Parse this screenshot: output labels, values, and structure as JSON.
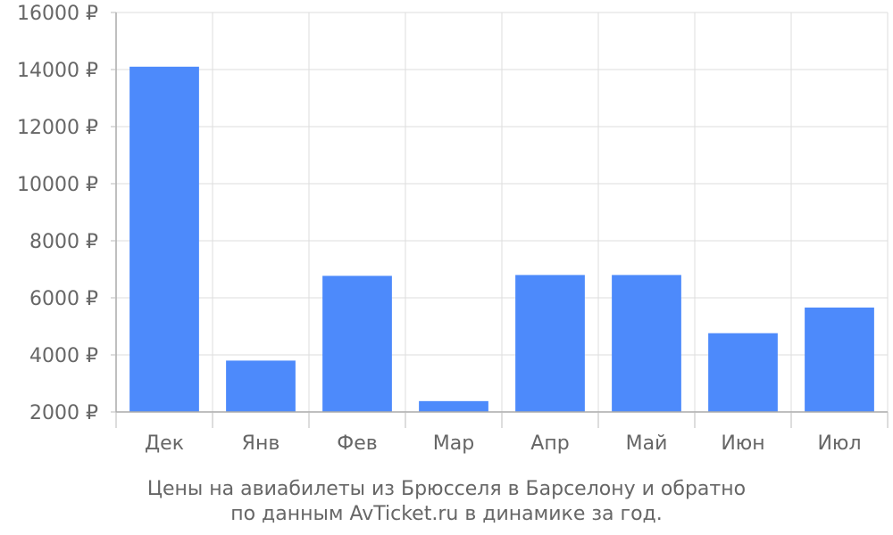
{
  "chart_data": {
    "type": "bar",
    "categories": [
      "Дек",
      "Янв",
      "Фев",
      "Мар",
      "Апр",
      "Май",
      "Июн",
      "Июл"
    ],
    "values": [
      14100,
      3800,
      6770,
      2380,
      6800,
      6800,
      4760,
      5660
    ],
    "ylim": [
      2000,
      16000
    ],
    "yticks": [
      2000,
      4000,
      6000,
      8000,
      10000,
      12000,
      14000,
      16000
    ],
    "y_tick_suffix": " ₽",
    "grid": true,
    "bar_color": "#4d8afb",
    "caption_lines": [
      "Цены на авиабилеты из Брюсселя в Барселону и обратно",
      "по данным AvTicket.ru в динамике за год."
    ]
  }
}
